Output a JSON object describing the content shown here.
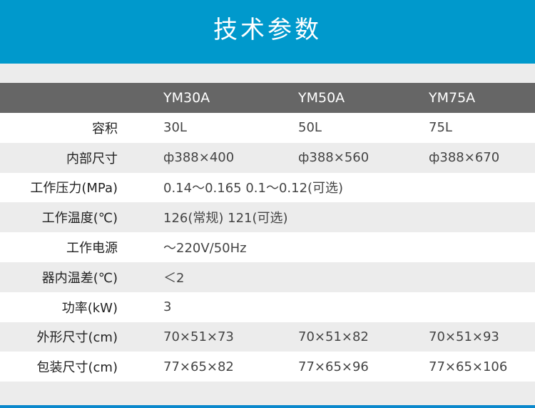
{
  "title": "技术参数",
  "columns": [
    "YM30A",
    "YM50A",
    "YM75A"
  ],
  "rows": [
    {
      "label": "容积",
      "values": [
        "30L",
        "50L",
        "75L"
      ]
    },
    {
      "label": "内部尺寸",
      "values": [
        "ф388×400",
        "ф388×560",
        "ф388×670"
      ]
    },
    {
      "label": "工作压力(MPa)",
      "values": [
        "0.14～0.165 0.1～0.12(可选)"
      ]
    },
    {
      "label": "工作温度(℃)",
      "values": [
        "126(常规)  121(可选)"
      ]
    },
    {
      "label": "工作电源",
      "values": [
        "～220V/50Hz"
      ]
    },
    {
      "label": "器内温差(℃)",
      "values": [
        "＜2"
      ]
    },
    {
      "label": "功率(kW)",
      "values": [
        "3"
      ]
    },
    {
      "label": "外形尺寸(cm)",
      "values": [
        "70×51×73",
        "70×51×82",
        "70×51×93"
      ]
    },
    {
      "label": "包装尺寸(cm)",
      "values": [
        "77×65×82",
        "77×65×96",
        "77×65×106"
      ]
    }
  ],
  "colors": {
    "accent": "#0099cc",
    "header_row": "#666666",
    "stripe": "#ececec"
  }
}
